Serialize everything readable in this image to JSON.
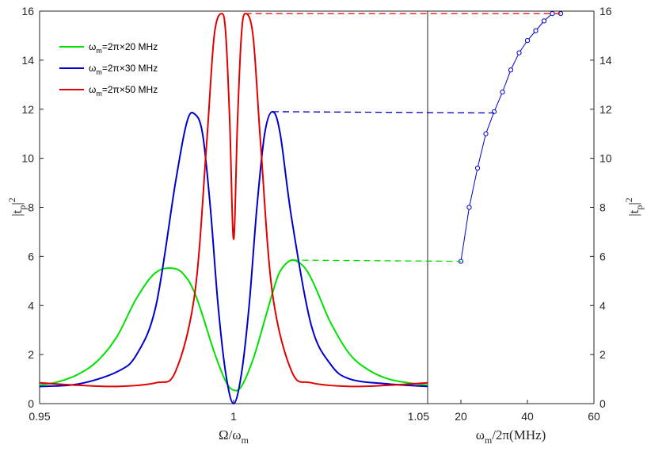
{
  "chart_data": [
    {
      "type": "line",
      "xlabel": "Ω/ω",
      "xlabel_sub": "m",
      "ylabel": "|t",
      "ylabel_sub": "p",
      "ylabel_sup": "2",
      "ylabel_suffix": "|",
      "xlim": [
        0.95,
        1.05
      ],
      "ylim": [
        0,
        16
      ],
      "xticks": [
        "0.95",
        "1",
        "1.05"
      ],
      "yticks": [
        "0",
        "2",
        "4",
        "6",
        "8",
        "10",
        "12",
        "14",
        "16"
      ],
      "legend_position": "top-left",
      "series": [
        {
          "name": "ω_m=2π×20 MHz",
          "legend_label": {
            "pre": "ω",
            "sub": "m",
            "post": "=2π×20 MHz"
          },
          "color": "#00e000",
          "x": [
            0.95,
            0.955,
            0.96,
            0.965,
            0.97,
            0.975,
            0.98,
            0.985,
            0.988,
            0.99,
            0.992,
            0.995,
            0.998,
            1.0,
            1.002,
            1.005,
            1.008,
            1.01,
            1.012,
            1.015,
            1.018,
            1.02,
            1.022,
            1.025,
            1.03,
            1.035,
            1.04,
            1.045,
            1.05
          ],
          "y": [
            0.75,
            0.9,
            1.2,
            1.75,
            2.75,
            4.3,
            5.35,
            5.5,
            5.1,
            4.5,
            3.6,
            2.1,
            0.9,
            0.55,
            0.7,
            1.8,
            3.4,
            4.5,
            5.4,
            5.85,
            5.6,
            5.1,
            4.4,
            3.3,
            2.0,
            1.35,
            1.0,
            0.85,
            0.75
          ]
        },
        {
          "name": "ω_m=2π×30 MHz",
          "legend_label": {
            "pre": "ω",
            "sub": "m",
            "post": "=2π×30 MHz"
          },
          "color": "#0000cc",
          "x": [
            0.95,
            0.96,
            0.97,
            0.975,
            0.98,
            0.985,
            0.988,
            0.99,
            0.992,
            0.994,
            0.996,
            0.998,
            1.0,
            1.002,
            1.004,
            1.006,
            1.008,
            1.01,
            1.012,
            1.015,
            1.02,
            1.025,
            1.03,
            1.04,
            1.05
          ],
          "y": [
            0.7,
            0.8,
            1.3,
            2.0,
            4.0,
            9.0,
            11.5,
            11.8,
            11.0,
            8.0,
            4.0,
            1.2,
            0.0,
            1.2,
            4.0,
            8.0,
            11.0,
            11.9,
            11.0,
            7.5,
            3.2,
            1.6,
            1.0,
            0.8,
            0.7
          ]
        },
        {
          "name": "ω_m=2π×50 MHz",
          "legend_label": {
            "pre": "ω",
            "sub": "m",
            "post": "=2π×50 MHz"
          },
          "color": "#e00000",
          "x": [
            0.95,
            0.96,
            0.97,
            0.98,
            0.985,
            0.99,
            0.993,
            0.995,
            0.997,
            0.998,
            0.999,
            1.0,
            1.001,
            1.002,
            1.003,
            1.005,
            1.007,
            1.01,
            1.015,
            1.02,
            1.03,
            1.04,
            1.05
          ],
          "y": [
            0.85,
            0.75,
            0.7,
            0.85,
            1.3,
            4.5,
            10.5,
            15.0,
            15.9,
            15.0,
            11.5,
            6.7,
            11.5,
            15.0,
            15.9,
            15.0,
            10.5,
            4.5,
            1.3,
            0.85,
            0.7,
            0.75,
            0.85
          ]
        }
      ]
    },
    {
      "type": "line",
      "xlabel": "ω",
      "xlabel_sub": "m",
      "xlabel_suffix": "/2π(MHz)",
      "ylabel": "|t",
      "ylabel_sub": "p",
      "ylabel_sup": "2",
      "ylabel_suffix": "|",
      "xlim": [
        10,
        60
      ],
      "ylim": [
        0,
        16
      ],
      "xticks": [
        "20",
        "40",
        "60"
      ],
      "yticks": [
        "0",
        "2",
        "4",
        "6",
        "8",
        "10",
        "12",
        "14",
        "16"
      ],
      "series": [
        {
          "color": "#0000cc",
          "marker": "circle",
          "x": [
            20,
            22.5,
            25,
            27.5,
            30,
            32.5,
            35,
            37.5,
            40,
            42.5,
            45,
            47.5,
            50
          ],
          "y": [
            5.8,
            8.0,
            9.6,
            11.0,
            11.9,
            12.7,
            13.6,
            14.3,
            14.8,
            15.2,
            15.6,
            15.9,
            15.9
          ]
        }
      ]
    }
  ],
  "connectors": [
    {
      "color": "#00e000",
      "from_series": 0,
      "y_start": 5.85,
      "y_end": 5.8
    },
    {
      "color": "#0000cc",
      "from_series": 1,
      "y_start": 11.9,
      "y_end": 11.85
    },
    {
      "color": "#e00000",
      "from_series": 2,
      "y_start": 15.9,
      "y_end": 15.9
    }
  ]
}
